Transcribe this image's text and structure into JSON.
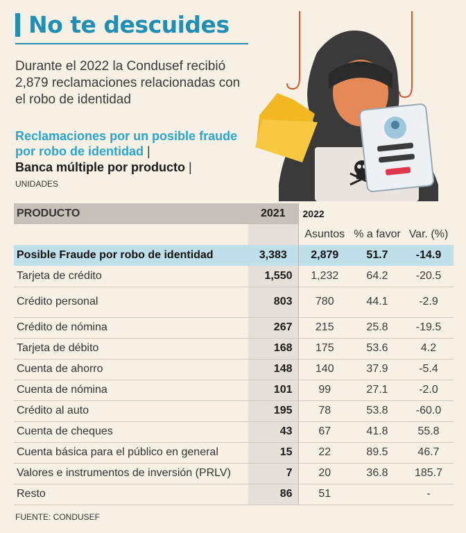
{
  "header": {
    "title": "No te descuides",
    "intro": "Durante el 2022 la Condusef recibió 2,879 reclamaciones relacionadas con el robo de identidad",
    "subtitle_blue": "Reclamaciones por un posible fraude por robo de identidad",
    "subtitle_black": "Banca múltiple por producto",
    "separator": "|",
    "units": "UNIDADES"
  },
  "colors": {
    "accent": "#1f8fb5",
    "highlight_row": "#bfe0ea",
    "background": "#f7f0e4"
  },
  "chart_data": {
    "type": "table",
    "columns": {
      "product": "PRODUCTO",
      "y2021": "2021",
      "y2022": "2022",
      "asuntos": "Asuntos",
      "favor": "% a favor",
      "var": "Var. (%)"
    },
    "rows": [
      {
        "product": "Posible Fraude por robo de identidad",
        "y2021": "3,383",
        "asuntos": "2,879",
        "favor": "51.7",
        "var": "-14.9"
      },
      {
        "product": "Tarjeta de crédito",
        "y2021": "1,550",
        "asuntos": "1,232",
        "favor": "64.2",
        "var": "-20.5"
      },
      {
        "product": "Crédito personal",
        "y2021": "803",
        "asuntos": "780",
        "favor": "44.1",
        "var": "-2.9"
      },
      {
        "product": "Crédito de nómina",
        "y2021": "267",
        "asuntos": "215",
        "favor": "25.8",
        "var": "-19.5"
      },
      {
        "product": "Tarjeta de débito",
        "y2021": "168",
        "asuntos": "175",
        "favor": "53.6",
        "var": "4.2"
      },
      {
        "product": "Cuenta de ahorro",
        "y2021": "148",
        "asuntos": "140",
        "favor": "37.9",
        "var": "-5.4"
      },
      {
        "product": "Cuenta de nómina",
        "y2021": "101",
        "asuntos": "99",
        "favor": "27.1",
        "var": "-2.0"
      },
      {
        "product": "Crédito al auto",
        "y2021": "195",
        "asuntos": "78",
        "favor": "53.8",
        "var": "-60.0"
      },
      {
        "product": "Cuenta de cheques",
        "y2021": "43",
        "asuntos": "67",
        "favor": "41.8",
        "var": "55.8"
      },
      {
        "product": "Cuenta básica para el público en general",
        "y2021": "15",
        "asuntos": "22",
        "favor": "89.5",
        "var": "46.7"
      },
      {
        "product": "Valores e instrumentos de inversión (PRLV)",
        "y2021": "7",
        "asuntos": "20",
        "favor": "36.8",
        "var": "185.7"
      },
      {
        "product": "Resto",
        "y2021": "86",
        "asuntos": "51",
        "favor": "",
        "var": "-"
      }
    ]
  },
  "footer": {
    "source": "FUENTE: CONDUSEF"
  },
  "illustration": {
    "icons": [
      "hacker-icon",
      "folder-icon",
      "skull-icon",
      "login-card-icon",
      "fishing-hook-icon"
    ]
  }
}
